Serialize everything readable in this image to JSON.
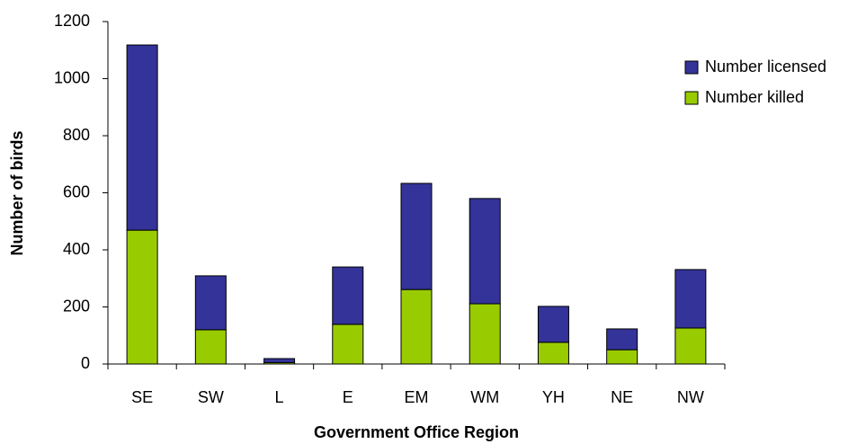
{
  "chart_data": {
    "type": "stacked_bar",
    "x_label": "Government Office Region",
    "y_label": "Number of birds",
    "categories": [
      "SE",
      "SW",
      "L",
      "E",
      "EM",
      "WM",
      "YH",
      "NE",
      "NW"
    ],
    "series": [
      {
        "name": "Number killed",
        "color": "#99cc00",
        "values": [
          469,
          120,
          5,
          139,
          261,
          211,
          76,
          50,
          126
        ]
      },
      {
        "name": "Number licensed",
        "color": "#333399",
        "values": [
          649,
          189,
          14,
          201,
          372,
          369,
          126,
          73,
          205
        ]
      }
    ],
    "ylim": [
      0,
      1200
    ],
    "yticks": [
      0,
      200,
      400,
      600,
      800,
      1000,
      1200
    ],
    "grid": false,
    "legend": "top-right"
  }
}
